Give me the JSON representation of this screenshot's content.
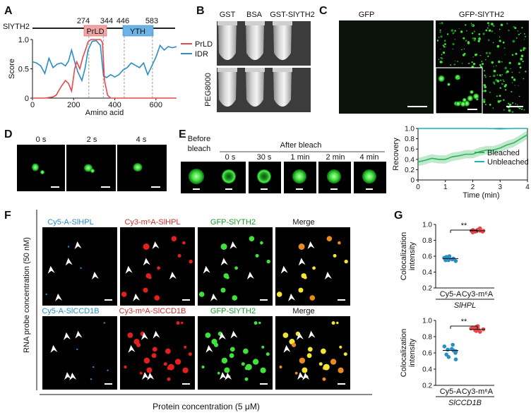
{
  "panels": {
    "A": {
      "letter": "A",
      "protein": "SlYTH2",
      "domains": [
        {
          "label": "PrLD",
          "start": 274,
          "end": 344,
          "color": "#f3a6a6"
        },
        {
          "label": "YTH",
          "start": 446,
          "end": 583,
          "color": "#6cb4e8"
        }
      ],
      "ticks_top": [
        "274",
        "344",
        "446",
        "583"
      ]
    },
    "B": {
      "letter": "B",
      "col_labels": [
        "GST",
        "BSA",
        "GST-SlYTH2"
      ],
      "row_label": "PEG8000"
    },
    "C": {
      "letter": "C",
      "col_labels": [
        "GFP",
        "GFP-SlYTH2"
      ]
    },
    "D": {
      "letter": "D",
      "times": [
        "0 s",
        "2 s",
        "4 s"
      ]
    },
    "E": {
      "letter": "E",
      "before_label_1": "Before",
      "before_label_2": "bleach",
      "after_label": "After bleach",
      "times": [
        "0 s",
        "30 s",
        "1 min",
        "2 min",
        "4 min"
      ]
    },
    "F": {
      "letter": "F",
      "row1_cols": [
        "Cy5-A-SlHPL",
        "Cy3-m⁶A-SlHPL",
        "GFP-SlYTH2",
        "Merge"
      ],
      "row2_cols": [
        "Cy5-A-SlCCD1B",
        "Cy3-m⁶A-SlCCD1B",
        "GFP-SlYTH2",
        "Merge"
      ],
      "ylabel": "RNA probe concentration (50 nM)",
      "xlabel": "Protein concentration (5 μM)"
    },
    "G": {
      "letter": "G"
    }
  },
  "chart_data": [
    {
      "type": "line",
      "panel": "A",
      "xlabel": "Amino acid",
      "ylabel": "Score",
      "xlim": [
        0,
        700
      ],
      "ylim": [
        0,
        1.0
      ],
      "xticks": [
        0,
        200,
        400,
        600
      ],
      "yticks": [
        0,
        0.5,
        1.0
      ],
      "ytick_labels": [
        "0",
        "0.5",
        "1.0"
      ],
      "legend_position": "right",
      "series": [
        {
          "name": "PrLD",
          "color": "#e8474b",
          "x": [
            0,
            60,
            100,
            115,
            140,
            160,
            175,
            190,
            205,
            215,
            230,
            245,
            260,
            270,
            285,
            300,
            330,
            340,
            350,
            365,
            380,
            700
          ],
          "y": [
            0,
            0,
            0.02,
            0.05,
            0.2,
            0.3,
            0.25,
            0.12,
            0.5,
            0.62,
            0.5,
            0.7,
            0.85,
            0.96,
            1.0,
            1.0,
            1.0,
            0.95,
            0.3,
            0.05,
            0,
            0
          ]
        },
        {
          "name": "IDR",
          "color": "#2a8ec4",
          "x": [
            0,
            20,
            40,
            60,
            80,
            100,
            120,
            140,
            160,
            175,
            190,
            205,
            220,
            240,
            255,
            270,
            290,
            310,
            330,
            345,
            360,
            380,
            400,
            420,
            440,
            460,
            480,
            500,
            520,
            540,
            560,
            580,
            600,
            620,
            640,
            660,
            680,
            700
          ],
          "y": [
            0.62,
            0.6,
            0.55,
            0.42,
            0.68,
            0.52,
            0.58,
            0.6,
            0.55,
            0.63,
            0.82,
            0.62,
            0.45,
            0.3,
            0.5,
            0.82,
            0.97,
            0.98,
            0.9,
            0.38,
            0.35,
            0.4,
            0.36,
            0.4,
            0.48,
            0.52,
            0.6,
            0.56,
            0.52,
            0.6,
            0.4,
            0.55,
            0.7,
            0.9,
            0.82,
            0.88,
            0.86,
            0.88
          ]
        }
      ]
    },
    {
      "type": "line",
      "panel": "E",
      "xlabel": "Time (min)",
      "ylabel": "Recovery",
      "xlim": [
        0,
        4
      ],
      "ylim": [
        0,
        1.0
      ],
      "xticks": [
        0,
        1,
        2,
        3,
        4
      ],
      "yticks": [
        0,
        0.2,
        0.4,
        0.6,
        0.8,
        1.0
      ],
      "ytick_labels": [
        "0",
        "0.2",
        "0.4",
        "0.6",
        "0.8",
        "1.0"
      ],
      "legend_position": "bottom-right",
      "series": [
        {
          "name": "Bleached",
          "color": "#2fb35a",
          "x": [
            0,
            0.25,
            0.5,
            0.75,
            1.0,
            1.25,
            1.5,
            1.75,
            2.0,
            2.25,
            2.5,
            2.75,
            3.0,
            3.25,
            3.5,
            3.75,
            4.0
          ],
          "y": [
            0.35,
            0.38,
            0.42,
            0.4,
            0.4,
            0.45,
            0.47,
            0.5,
            0.5,
            0.55,
            0.58,
            0.58,
            0.62,
            0.68,
            0.72,
            0.8,
            0.88
          ],
          "err": 0.08
        },
        {
          "name": "Unbleached",
          "color": "#19b0bf",
          "x": [
            0,
            0.5,
            1.0,
            1.5,
            2.0,
            2.5,
            3.0,
            3.5,
            4.0
          ],
          "y": [
            1.0,
            1.0,
            1.0,
            1.0,
            1.0,
            1.0,
            0.99,
            1.0,
            1.0
          ]
        }
      ]
    },
    {
      "type": "scatter",
      "panel": "G",
      "xlabel": "SlHPL",
      "ylabel": "Colocalization intensity",
      "categories": [
        "Cy5-A",
        "Cy3-m⁶A"
      ],
      "ylim": [
        0.2,
        1.0
      ],
      "yticks": [
        0.2,
        0.4,
        0.6,
        0.8,
        1.0
      ],
      "ytick_labels": [
        "0.2",
        "0.4",
        "0.6",
        "0.8",
        "1.0"
      ],
      "significance": "**",
      "series": [
        {
          "name": "Cy5-A",
          "color": "#2a8ec4",
          "values": [
            0.58,
            0.56,
            0.55,
            0.6,
            0.57,
            0.54,
            0.59,
            0.56,
            0.55,
            0.57
          ],
          "mean": 0.57
        },
        {
          "name": "Cy3-m⁶A",
          "color": "#e8474b",
          "values": [
            0.92,
            0.93,
            0.9,
            0.94,
            0.91,
            0.92,
            0.95,
            0.93,
            0.91,
            0.92
          ],
          "mean": 0.92
        }
      ]
    },
    {
      "type": "scatter",
      "panel": "G",
      "xlabel": "SlCCD1B",
      "ylabel": "Colocalization intensity",
      "categories": [
        "Cy5-A",
        "Cy3-m⁶A"
      ],
      "ylim": [
        0.2,
        1.0
      ],
      "yticks": [
        0.2,
        0.4,
        0.6,
        0.8,
        1.0
      ],
      "ytick_labels": [
        "0.2",
        "0.4",
        "0.6",
        "0.8",
        "1.0"
      ],
      "significance": "**",
      "series": [
        {
          "name": "Cy5-A",
          "color": "#2a8ec4",
          "values": [
            0.64,
            0.58,
            0.52,
            0.62,
            0.68,
            0.55,
            0.6,
            0.7,
            0.63,
            0.65
          ],
          "mean": 0.63
        },
        {
          "name": "Cy3-m⁶A",
          "color": "#e8474b",
          "values": [
            0.88,
            0.9,
            0.86,
            0.91,
            0.89,
            0.92,
            0.87,
            0.9,
            0.93,
            0.88
          ],
          "mean": 0.89
        }
      ]
    }
  ]
}
